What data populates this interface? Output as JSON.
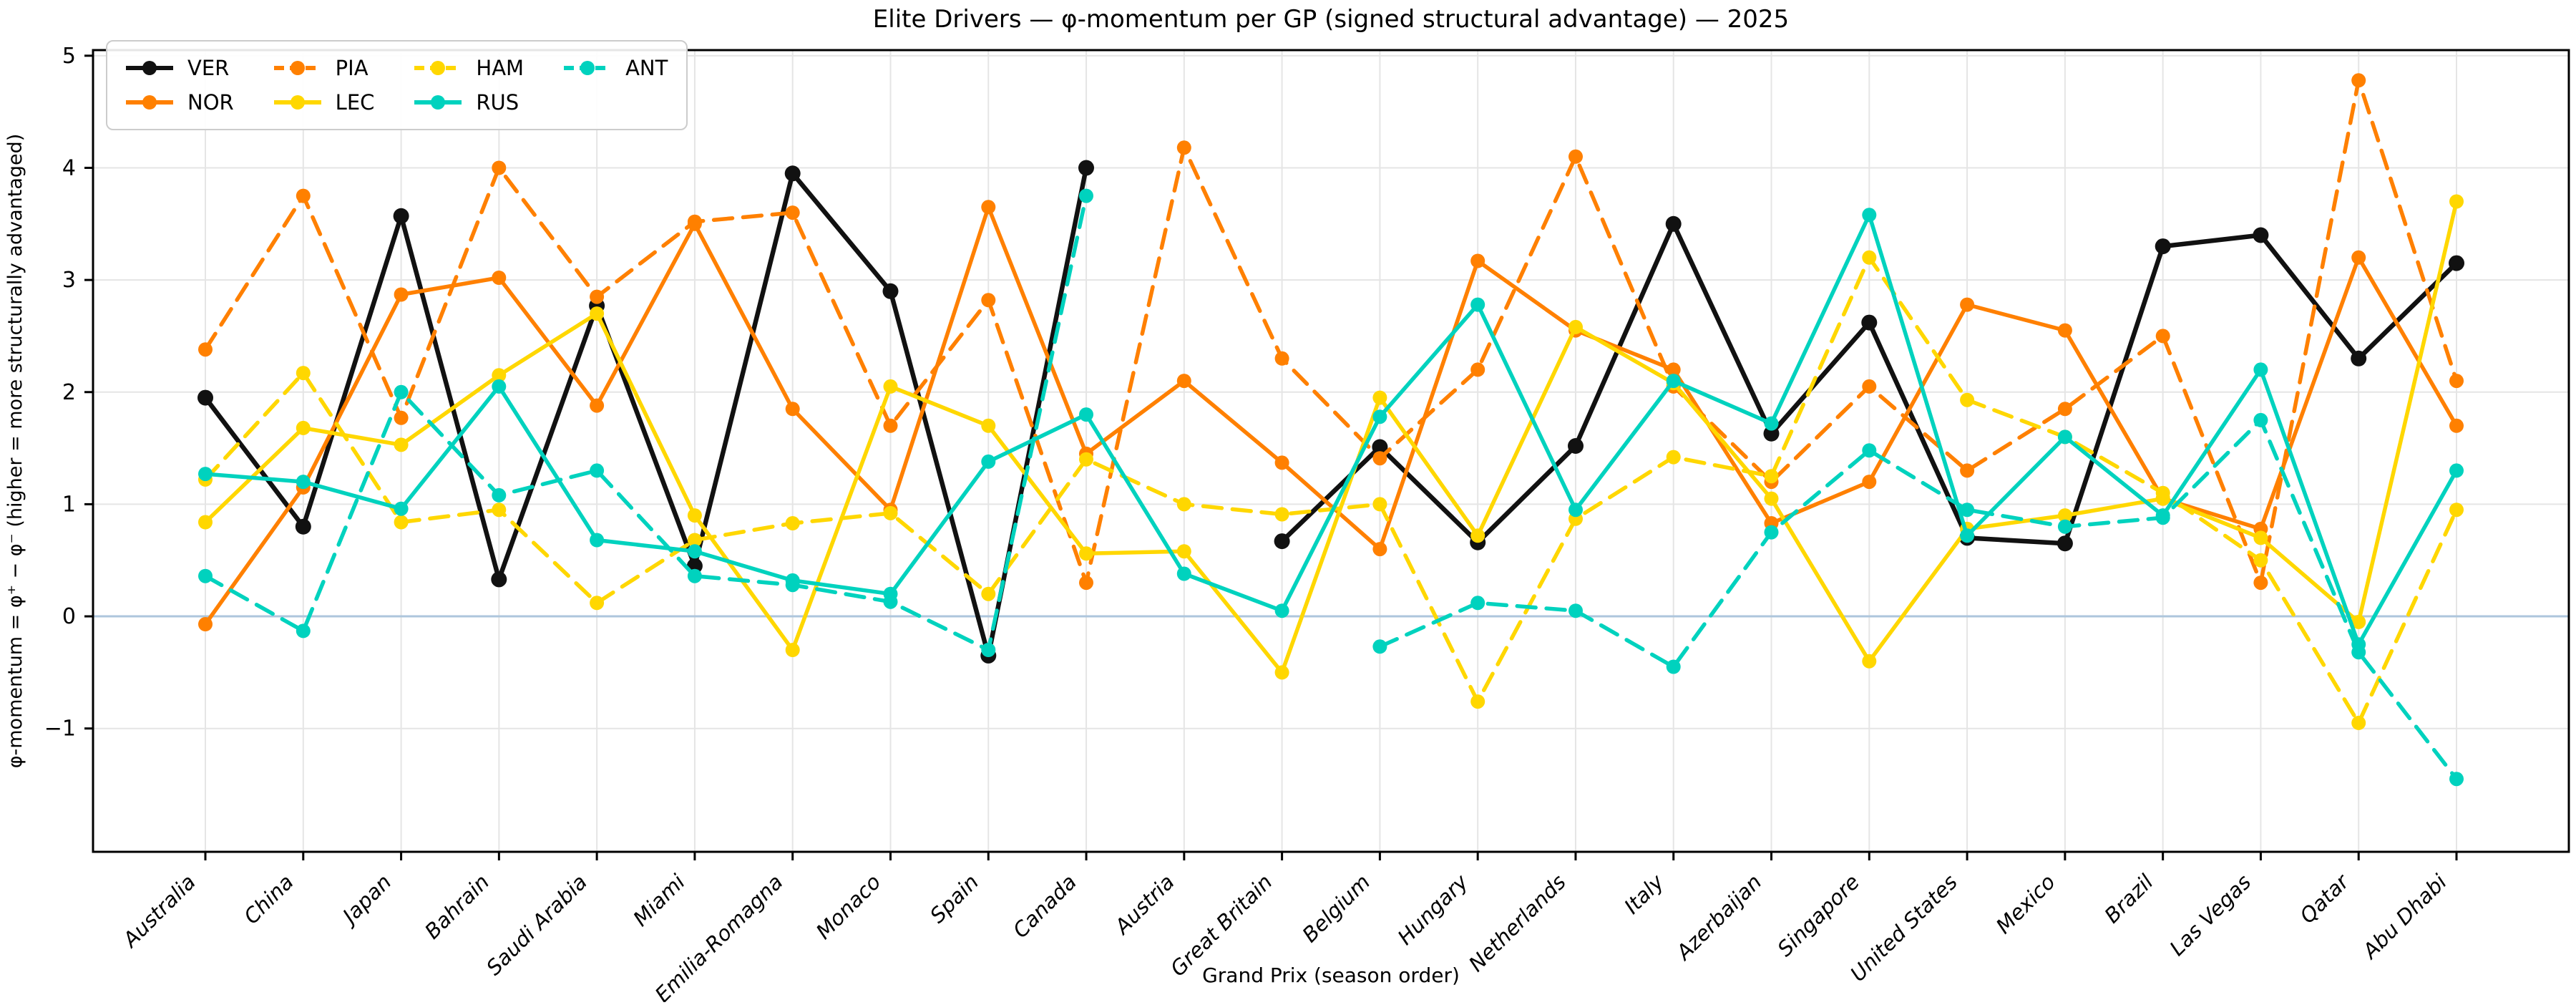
{
  "title": "Elite Drivers — φ-momentum per GP (signed structural advantage) — 2025",
  "chart_data": {
    "type": "line",
    "title": "Elite Drivers — φ-momentum per GP (signed structural advantage) — 2025",
    "xlabel": "Grand Prix (season order)",
    "ylabel": "φ-momentum = φ⁺ − φ⁻  (higher = more structurally advantaged)",
    "categories": [
      "Australia",
      "China",
      "Japan",
      "Bahrain",
      "Saudi Arabia",
      "Miami",
      "Emilia-Romagna",
      "Monaco",
      "Spain",
      "Canada",
      "Austria",
      "Great Britain",
      "Belgium",
      "Hungary",
      "Netherlands",
      "Italy",
      "Azerbaijan",
      "Singapore",
      "United States",
      "Mexico",
      "Brazil",
      "Las Vegas",
      "Qatar",
      "Abu Dhabi"
    ],
    "yticks": [
      -1,
      0,
      1,
      2,
      3,
      4,
      5
    ],
    "ylim": [
      -2.1,
      5.05
    ],
    "grid": true,
    "grid_color": "#e5e5e5",
    "zero_line_color": "#aec6dc",
    "background": "#ffffff",
    "legend_position": "upper-left",
    "series": [
      {
        "name": "VER",
        "color": "#111111",
        "style": "solid",
        "values": [
          1.95,
          0.8,
          3.57,
          0.33,
          2.77,
          0.45,
          3.95,
          2.9,
          -0.35,
          4.0,
          null,
          0.67,
          1.51,
          0.66,
          1.52,
          3.5,
          1.63,
          2.62,
          0.7,
          0.65,
          3.3,
          3.4,
          2.3,
          3.15
        ]
      },
      {
        "name": "NOR",
        "color": "#FF8000",
        "style": "solid",
        "values": [
          -0.07,
          1.15,
          2.87,
          3.02,
          1.88,
          3.5,
          1.85,
          0.95,
          3.65,
          1.45,
          2.1,
          1.37,
          0.6,
          3.17,
          2.55,
          2.2,
          0.83,
          1.2,
          2.78,
          2.55,
          1.05,
          0.78,
          3.2,
          1.7
        ]
      },
      {
        "name": "PIA",
        "color": "#FF8000",
        "style": "dashed",
        "values": [
          2.38,
          3.75,
          1.77,
          4.0,
          2.85,
          3.52,
          3.6,
          1.7,
          2.82,
          0.3,
          4.18,
          2.3,
          1.41,
          2.2,
          4.1,
          2.05,
          1.2,
          2.05,
          1.3,
          1.85,
          2.5,
          0.3,
          4.78,
          2.1
        ]
      },
      {
        "name": "LEC",
        "color": "#FFD700",
        "style": "solid",
        "values": [
          0.84,
          1.68,
          1.53,
          2.15,
          2.7,
          0.9,
          -0.3,
          2.05,
          1.7,
          0.56,
          0.58,
          -0.5,
          1.95,
          0.72,
          2.58,
          2.08,
          1.05,
          -0.4,
          0.78,
          0.9,
          1.05,
          0.7,
          -0.05,
          3.7
        ]
      },
      {
        "name": "HAM",
        "color": "#FFD700",
        "style": "dashed",
        "values": [
          1.22,
          2.17,
          0.84,
          0.95,
          0.12,
          0.68,
          0.83,
          0.92,
          0.2,
          1.4,
          1.0,
          0.91,
          1.0,
          -0.76,
          0.87,
          1.42,
          1.25,
          3.2,
          1.93,
          1.6,
          1.1,
          0.5,
          -0.95,
          0.95
        ]
      },
      {
        "name": "RUS",
        "color": "#00D2BE",
        "style": "solid",
        "values": [
          1.27,
          1.2,
          0.96,
          2.05,
          0.68,
          0.58,
          0.32,
          0.2,
          1.38,
          1.8,
          0.38,
          0.05,
          1.78,
          2.78,
          0.95,
          2.1,
          1.72,
          3.58,
          0.72,
          1.6,
          0.9,
          2.2,
          -0.25,
          1.3
        ]
      },
      {
        "name": "ANT",
        "color": "#00D2BE",
        "style": "dashed",
        "values": [
          0.36,
          -0.13,
          2.0,
          1.08,
          1.3,
          0.36,
          0.28,
          0.13,
          -0.3,
          3.75,
          null,
          null,
          -0.27,
          0.12,
          0.05,
          -0.45,
          0.75,
          1.48,
          0.95,
          0.8,
          0.88,
          1.75,
          -0.32,
          -1.45
        ]
      }
    ],
    "legend_column_major_order": [
      "VER",
      "NOR",
      "PIA",
      "LEC",
      "HAM",
      "RUS",
      "ANT"
    ]
  }
}
